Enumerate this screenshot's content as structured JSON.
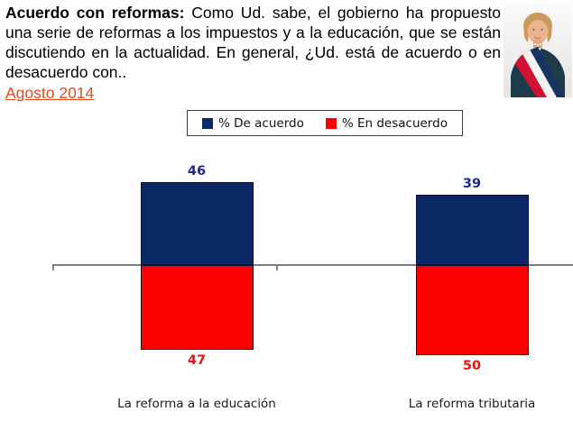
{
  "header": {
    "title_bold": "Acuerdo con reformas:",
    "title_rest": "Como Ud. sabe, el gobierno ha propuesto una serie de reformas a los impuestos y a la educación, que se están discutiendo en la actualidad. En general, ¿Ud. está de acuerdo o en desacuerdo con..",
    "date_link": "Agosto 2014",
    "date_color": "#E8491D",
    "photo_alt": "presidenta-con-banda-presidencial"
  },
  "legend": {
    "items": [
      {
        "label": "% De acuerdo",
        "color": "#0D2965"
      },
      {
        "label": "% En desacuerdo",
        "color": "#FB0000"
      }
    ]
  },
  "chart_data": {
    "type": "bar",
    "subtype": "diverging-stacked-columns",
    "title": "Acuerdo con reformas - Agosto 2014",
    "categories": [
      "La reforma a la educación",
      "La reforma tributaria"
    ],
    "series": [
      {
        "name": "% De acuerdo",
        "color": "#0D2965",
        "label_color": "#1D2C8C",
        "direction": "up",
        "values": [
          46,
          39
        ]
      },
      {
        "name": "% En desacuerdo",
        "color": "#FB0000",
        "label_color": "#EE1212",
        "direction": "down",
        "values": [
          47,
          50
        ]
      }
    ],
    "baseline": 0,
    "axis_color": "#7f7f7f",
    "grid": false,
    "legend_position": "top-center",
    "value_labels": "outside-end"
  }
}
